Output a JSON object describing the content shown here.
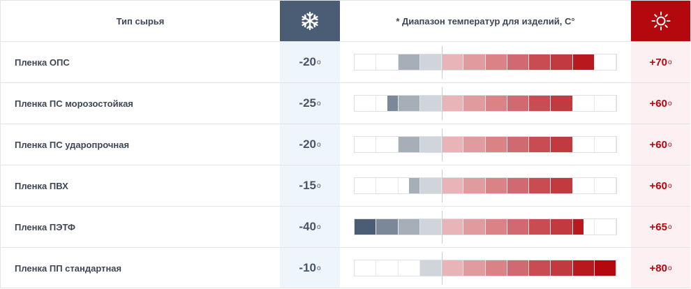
{
  "header": {
    "type_label": "Тип сырья",
    "range_label": "* Диапазон температур для изделий, С°",
    "cold_icon": "snowflake-icon",
    "hot_icon": "sun-icon"
  },
  "colors": {
    "cold_header": "#4a5d75",
    "hot_header": "#b3080d",
    "cold_column": "#eef6fc",
    "hot_column": "#fdf0f3"
  },
  "scale": {
    "min": -40,
    "max": 80,
    "step": 10
  },
  "rows": [
    {
      "name": "Пленка ОПС",
      "min_label": "-20",
      "max_label": "+70",
      "min": -20,
      "max": 70
    },
    {
      "name": "Пленка ПС морозостойкая",
      "min_label": "-25",
      "max_label": "+60",
      "min": -25,
      "max": 60
    },
    {
      "name": "Пленка ПС ударопрочная",
      "min_label": "-20",
      "max_label": "+60",
      "min": -20,
      "max": 60
    },
    {
      "name": "Пленка ПВХ",
      "min_label": "-15",
      "max_label": "+60",
      "min": -15,
      "max": 60
    },
    {
      "name": "Пленка ПЭТФ",
      "min_label": "-40",
      "max_label": "+65",
      "min": -40,
      "max": 65
    },
    {
      "name": "Пленка ПП стандартная",
      "min_label": "-10",
      "max_label": "+80",
      "min": -10,
      "max": 80
    }
  ],
  "degree_symbol": "o"
}
